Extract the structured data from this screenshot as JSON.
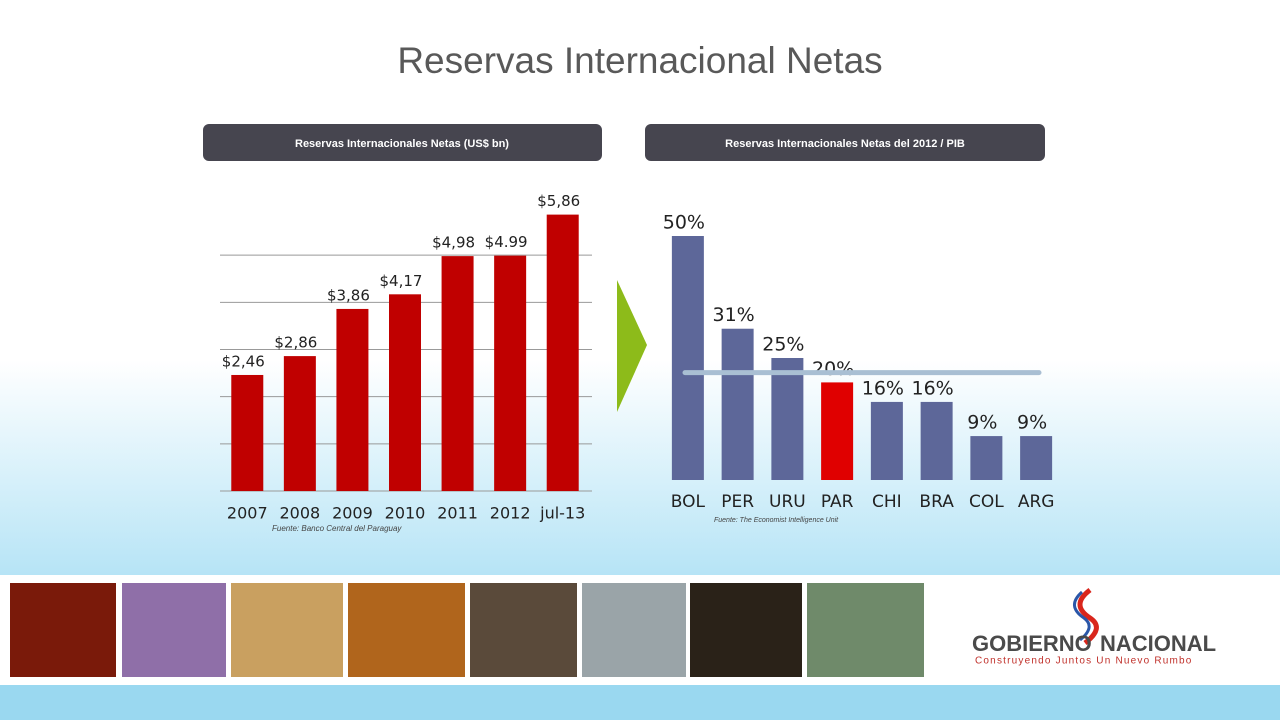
{
  "title": "Reservas Internacional Netas",
  "chart_data": [
    {
      "type": "bar",
      "title": "Reservas Internacionales Netas  (US$ bn)",
      "categories": [
        "2007",
        "2008",
        "2009",
        "2010",
        "2011",
        "2012",
        "jul-13"
      ],
      "values": [
        2.46,
        2.86,
        3.86,
        4.17,
        4.98,
        4.99,
        5.86
      ],
      "value_labels": [
        "$2,46",
        "$2,86",
        "$3,86",
        "$4,17",
        "$4,98",
        "$4.99",
        "$5,86"
      ],
      "color": "#c00000",
      "ylim": [
        0,
        6
      ],
      "yticks": [
        0,
        1,
        2,
        3,
        4,
        5
      ],
      "grid": true,
      "source": "Fuente: Banco Central del Paraguay"
    },
    {
      "type": "bar",
      "title": "Reservas Internacionales Netas del 2012 / PIB",
      "categories": [
        "BOL",
        "PER",
        "URU",
        "PAR",
        "CHI",
        "BRA",
        "COL",
        "ARG"
      ],
      "values": [
        50,
        31,
        25,
        20,
        16,
        16,
        9,
        9
      ],
      "value_labels": [
        "50%",
        "31%",
        "25%",
        "20%",
        "16%",
        "16%",
        "9%",
        "9%"
      ],
      "colors": [
        "#5d6799",
        "#5d6799",
        "#5d6799",
        "#e00000",
        "#5d6799",
        "#5d6799",
        "#5d6799",
        "#5d6799"
      ],
      "ylim": [
        0,
        50
      ],
      "reference_line": 22,
      "reference_color": "#a9bfd3",
      "source": "Fuente: The Economist Intelligence Unit"
    }
  ],
  "footer": {
    "logo_word_1": "GOBIERNO",
    "logo_word_2": "NACIONAL",
    "slogan": "Construyendo Juntos Un Nuevo Rumbo"
  }
}
